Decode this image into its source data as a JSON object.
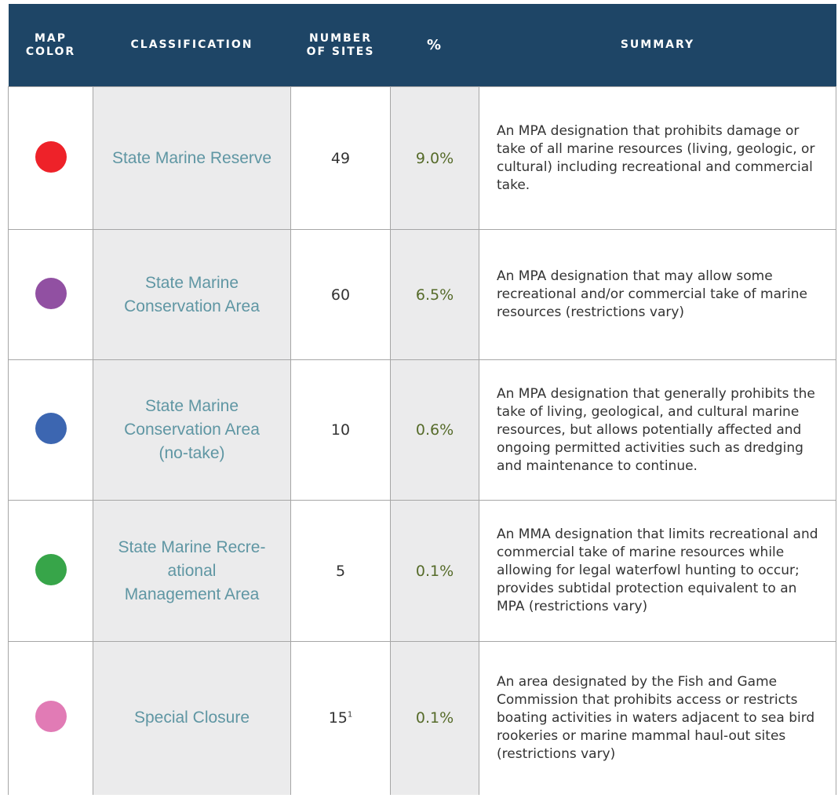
{
  "table": {
    "header": [
      "MAP\nCOLOR",
      "CLASSIFICATION",
      "NUMBER\nOF SITES",
      "%",
      "SUMMARY"
    ],
    "rows": [
      {
        "color": "#ee2229",
        "classification": "State Marine Reserve",
        "sites": "49",
        "percent": "9.0%",
        "summary": "An MPA designation that prohibits damage or take of all marine resources (living, geologic, or cultural) including recreational and commercial take."
      },
      {
        "color": "#9150a2",
        "classification": "State Marine\nConservation Area",
        "sites": "60",
        "percent": "6.5%",
        "summary": "An MPA designation that may allow some recreational and/or commercial take of marine resources (restrictions vary)"
      },
      {
        "color": "#3c66b1",
        "classification": "State Marine\nConservation Area\n(no-take)",
        "sites": "10",
        "percent": "0.6%",
        "summary": "An MPA designation that generally prohibits the take of living, geological, and cultural marine resources, but allows potentially affected and ongoing permitted activities such as dredging and maintenance to continue."
      },
      {
        "color": "#37a549",
        "classification": "State Marine Recre-\national\nManagement Area",
        "sites": "5",
        "percent": "0.1%",
        "summary": "An MMA designation that limits recreational and commercial take of marine resources while allowing for legal waterfowl hunting to occur; provides subtidal protection equivalent to an MPA (restrictions vary)"
      },
      {
        "color": "#e17bb5",
        "classification": "Special Closure",
        "sites": "15",
        "footnote": "1",
        "percent": "0.1%",
        "summary": "An area designated by the Fish and Game Commission that prohibits access or restricts boating activities in waters adjacent to sea bird rookeries or marine mammal haul-out sites (restrictions vary)"
      }
    ]
  }
}
